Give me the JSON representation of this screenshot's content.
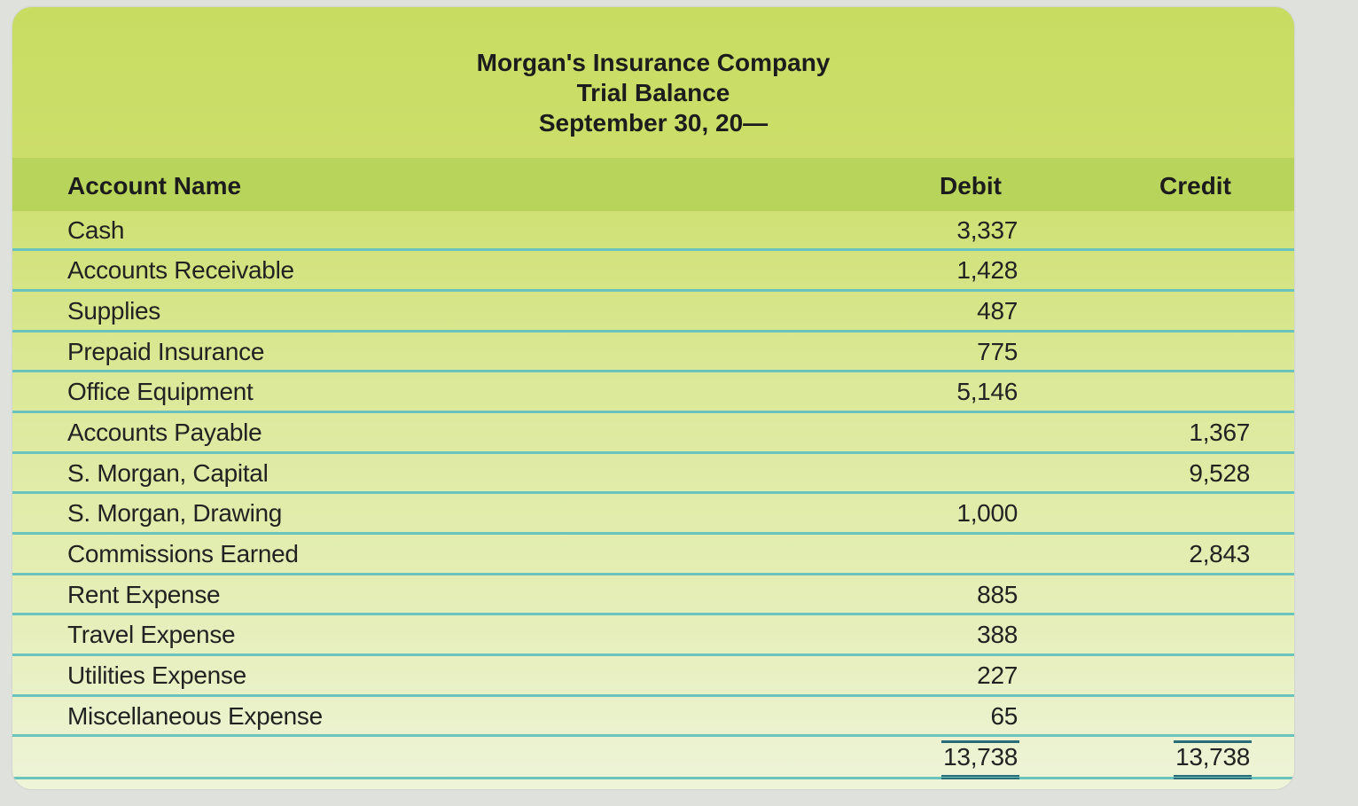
{
  "header": {
    "company": "Morgan's Insurance Company",
    "report": "Trial Balance",
    "date": "September 30, 20—"
  },
  "columns": {
    "name": "Account Name",
    "debit": "Debit",
    "credit": "Credit"
  },
  "rows": [
    {
      "name": "Cash",
      "debit": "3,337",
      "credit": ""
    },
    {
      "name": "Accounts Receivable",
      "debit": "1,428",
      "credit": ""
    },
    {
      "name": "Supplies",
      "debit": "487",
      "credit": ""
    },
    {
      "name": "Prepaid Insurance",
      "debit": "775",
      "credit": ""
    },
    {
      "name": "Office Equipment",
      "debit": "5,146",
      "credit": ""
    },
    {
      "name": "Accounts Payable",
      "debit": "",
      "credit": "1,367"
    },
    {
      "name": "S. Morgan, Capital",
      "debit": "",
      "credit": "9,528"
    },
    {
      "name": "S. Morgan, Drawing",
      "debit": "1,000",
      "credit": ""
    },
    {
      "name": "Commissions Earned",
      "debit": "",
      "credit": "2,843"
    },
    {
      "name": "Rent Expense",
      "debit": "885",
      "credit": ""
    },
    {
      "name": "Travel Expense",
      "debit": "388",
      "credit": ""
    },
    {
      "name": "Utilities Expense",
      "debit": "227",
      "credit": ""
    },
    {
      "name": "Miscellaneous Expense",
      "debit": "65",
      "credit": ""
    }
  ],
  "totals": {
    "debit": "13,738",
    "credit": "13,738"
  }
}
